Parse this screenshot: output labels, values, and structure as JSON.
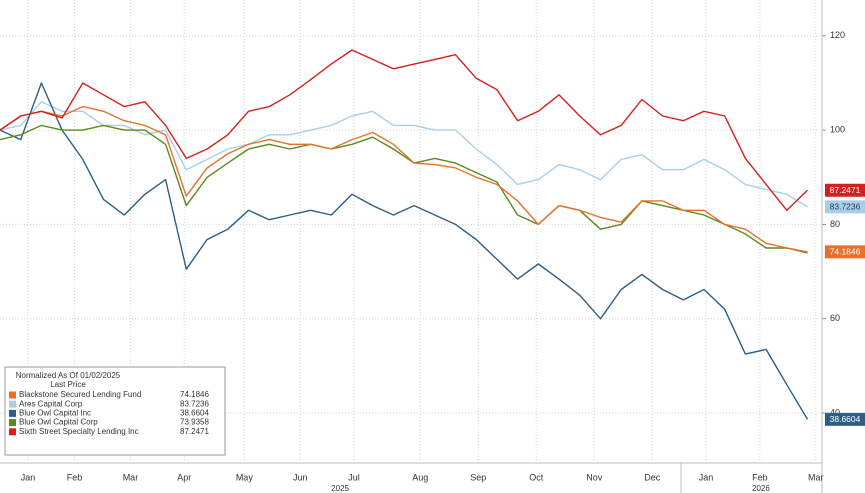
{
  "chart_data": {
    "type": "line",
    "legend_title": "Normalized As Of 01/02/2025",
    "legend_subtitle": "Last Price",
    "x": [
      0,
      1,
      2,
      3,
      4,
      5,
      6,
      7,
      8,
      9,
      10,
      11,
      12,
      13,
      14,
      15,
      16,
      17,
      18,
      19,
      20,
      21,
      22,
      23,
      24,
      25,
      26,
      27,
      28,
      29,
      30,
      31,
      32,
      33,
      34,
      35,
      36,
      37,
      38,
      39
    ],
    "xlim": [
      0,
      39.7
    ],
    "xticks": [
      {
        "value": 1.35,
        "label": "Jan"
      },
      {
        "value": 3.6,
        "label": "Feb"
      },
      {
        "value": 6.3,
        "label": "Mar"
      },
      {
        "value": 8.9,
        "label": "Apr"
      },
      {
        "value": 11.8,
        "label": "May"
      },
      {
        "value": 14.5,
        "label": "Jun"
      },
      {
        "value": 17.1,
        "label": "Jul"
      },
      {
        "value": 20.3,
        "label": "Aug"
      },
      {
        "value": 23.1,
        "label": "Sep"
      },
      {
        "value": 25.9,
        "label": "Oct"
      },
      {
        "value": 28.7,
        "label": "Nov"
      },
      {
        "value": 31.5,
        "label": "Dec"
      },
      {
        "value": 34.1,
        "label": "Jan"
      },
      {
        "value": 36.7,
        "label": "Feb"
      },
      {
        "value": 39.4,
        "label": "Mar"
      }
    ],
    "year_labels": [
      "2025",
      "2026"
    ],
    "ylim": [
      31.1,
      127.6
    ],
    "yticks": [
      40,
      60,
      80,
      100,
      120
    ],
    "grid": true,
    "legend_position": "lower left",
    "series": [
      {
        "name": "Blackstone Secured Lending Fund",
        "color": "#e8702a",
        "values": [
          100,
          103,
          104,
          103,
          105,
          104,
          102,
          101,
          99,
          86,
          92,
          95,
          97,
          98,
          97,
          97,
          96,
          98,
          99.5,
          97,
          93,
          92.7,
          92,
          90,
          88.5,
          85,
          80,
          84,
          83,
          81.5,
          80.5,
          85,
          85,
          83,
          83,
          80,
          79,
          76,
          75,
          74.1846
        ]
      },
      {
        "name": "Ares Capital Corp",
        "color": "#a9cfe8",
        "values": [
          100,
          101,
          106,
          104,
          104,
          101,
          101,
          99,
          100,
          91.6,
          93.8,
          96,
          97,
          99,
          99,
          100,
          101,
          103,
          104,
          101,
          101,
          100,
          100,
          96,
          92.7,
          88.5,
          89.5,
          92.7,
          91.6,
          89.5,
          93.8,
          94.8,
          91.6,
          91.6,
          93.8,
          91.6,
          88.5,
          87.4,
          86.4,
          83.7236
        ]
      },
      {
        "name": "Blue Owl Capital Inc",
        "color": "#2e5e86",
        "values": [
          100,
          98,
          110,
          100,
          93.8,
          85.3,
          82,
          86.4,
          89.5,
          70.5,
          76.8,
          79,
          83,
          81,
          82,
          83,
          82,
          86.4,
          84,
          82,
          84,
          82,
          80,
          76.8,
          72.6,
          68.4,
          71.6,
          68.4,
          65,
          60,
          66.2,
          69.4,
          66.2,
          64,
          66.2,
          62,
          52.5,
          53.5,
          46,
          38.6604
        ]
      },
      {
        "name": "Blue Owl Capital Corp",
        "color": "#5a8a1e",
        "values": [
          98,
          99,
          101,
          100,
          100,
          101,
          100,
          100,
          97,
          84,
          90,
          93,
          96,
          97,
          96,
          97,
          96,
          97,
          98.5,
          96,
          93,
          94,
          93,
          91,
          89,
          82,
          80,
          84,
          83,
          79,
          80,
          85,
          84,
          83,
          82,
          80,
          78,
          75,
          75,
          73.9358
        ]
      },
      {
        "name": "Sixth Street Specialty Lending Inc",
        "color": "#d4201f",
        "values": [
          100,
          103,
          104,
          102.6,
          110,
          107.5,
          105,
          106,
          101,
          94,
          96,
          99,
          104,
          105,
          107.5,
          110.7,
          114,
          117,
          115,
          113,
          114,
          115,
          116,
          111,
          108.6,
          102,
          104,
          107.5,
          103,
          99,
          101,
          106.5,
          103,
          102,
          104,
          103,
          94,
          88.5,
          83,
          87.2471
        ]
      }
    ]
  }
}
